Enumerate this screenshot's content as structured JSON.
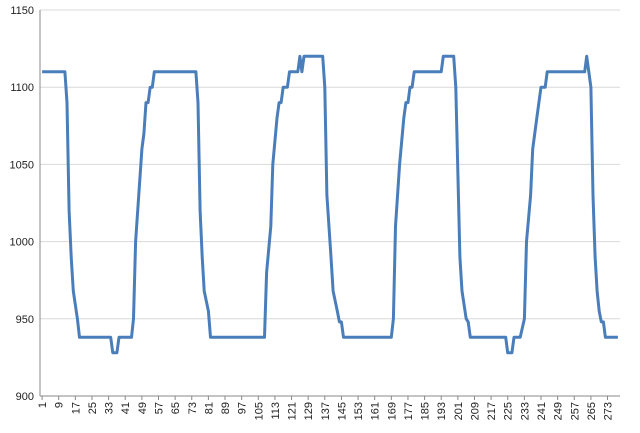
{
  "chart_data": {
    "type": "line",
    "x": [
      1,
      12,
      13,
      14,
      15,
      16,
      18,
      19,
      34,
      35,
      37,
      38,
      44,
      45,
      46,
      48,
      49,
      50,
      51,
      52,
      53,
      54,
      55,
      75,
      76,
      77,
      78,
      79,
      81,
      82,
      108,
      109,
      111,
      112,
      114,
      115,
      116,
      117,
      119,
      120,
      124,
      125,
      126,
      127,
      136,
      137,
      138,
      140,
      141,
      143,
      144,
      145,
      146,
      169,
      170,
      171,
      173,
      175,
      176,
      177,
      178,
      179,
      180,
      193,
      194,
      199,
      200,
      202,
      203,
      205,
      206,
      207,
      224,
      225,
      227,
      228,
      231,
      233,
      234,
      236,
      237,
      239,
      240,
      241,
      243,
      244,
      262,
      263,
      265,
      266,
      267,
      268,
      269,
      270,
      271,
      272,
      278
    ],
    "values": [
      1110,
      1110,
      1090,
      1020,
      990,
      968,
      950,
      938,
      938,
      928,
      928,
      938,
      938,
      950,
      1000,
      1040,
      1060,
      1070,
      1090,
      1090,
      1100,
      1100,
      1110,
      1110,
      1090,
      1020,
      990,
      968,
      955,
      938,
      938,
      980,
      1010,
      1050,
      1080,
      1090,
      1090,
      1100,
      1100,
      1110,
      1110,
      1120,
      1110,
      1120,
      1120,
      1100,
      1030,
      990,
      968,
      955,
      948,
      948,
      938,
      938,
      950,
      1010,
      1050,
      1080,
      1090,
      1090,
      1100,
      1100,
      1110,
      1110,
      1120,
      1120,
      1100,
      990,
      968,
      950,
      948,
      938,
      938,
      928,
      928,
      938,
      938,
      950,
      1000,
      1030,
      1060,
      1080,
      1090,
      1100,
      1100,
      1110,
      1110,
      1120,
      1100,
      1030,
      990,
      968,
      955,
      948,
      948,
      938,
      938
    ],
    "color": "#4a7ebb",
    "xlim": [
      0,
      279
    ],
    "xticks": [
      1,
      9,
      17,
      25,
      33,
      41,
      49,
      57,
      65,
      73,
      81,
      89,
      97,
      105,
      113,
      121,
      129,
      137,
      145,
      153,
      161,
      169,
      177,
      185,
      193,
      201,
      209,
      217,
      225,
      233,
      241,
      249,
      257,
      265,
      273
    ],
    "ylim": [
      900,
      1150
    ],
    "yticks": [
      900,
      950,
      1000,
      1050,
      1100,
      1150
    ],
    "grid": true
  }
}
